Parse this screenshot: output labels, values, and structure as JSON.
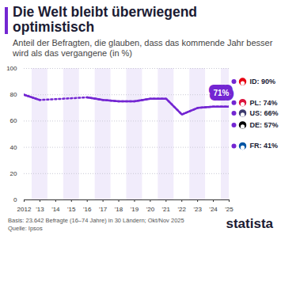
{
  "chart_data": {
    "type": "line",
    "title": "Die Welt bleibt überwiegend optimistisch",
    "subtitle": "Anteil der Befragten, die glauben, dass das kommende Jahr besser wird als das vergangene (in %)",
    "caption": [
      "Basis: 23.642 Befragte (16–74 Jahre) in 30 Ländern; Okt/Nov 2025",
      "Quelle: Ipsos"
    ],
    "source_logo": "statista",
    "x": [
      2012,
      2013,
      2014,
      2015,
      2016,
      2017,
      2018,
      2019,
      2020,
      2021,
      2022,
      2023,
      2024,
      2025
    ],
    "series": [
      {
        "name": "Welt",
        "color": "#7326d2",
        "values": [
          80,
          76,
          null,
          null,
          78,
          76,
          75,
          75,
          77,
          77,
          65,
          70,
          71,
          71
        ],
        "value_labels": [
          null,
          null,
          null,
          null,
          null,
          null,
          null,
          null,
          null,
          null,
          null,
          null,
          null,
          "71%"
        ]
      }
    ],
    "countries": {
      "categories": [
        "ID",
        "PL",
        "US",
        "DE",
        "FR"
      ],
      "values": [
        90,
        74,
        66,
        57,
        41
      ],
      "value_labels": [
        "ID: 90%",
        "PL: 74%",
        "US: 66%",
        "DE: 57%",
        "FR: 41%"
      ],
      "color": "#7326d2"
    },
    "xlim": [
      2012,
      2025
    ],
    "xticks": [
      {
        "value": 2012,
        "label": "2012"
      },
      {
        "value": 2013,
        "label": "'13"
      },
      {
        "value": 2014,
        "label": "'14"
      },
      {
        "value": 2015,
        "label": "'15"
      },
      {
        "value": 2016,
        "label": "'16"
      },
      {
        "value": 2017,
        "label": "'17"
      },
      {
        "value": 2018,
        "label": "'18"
      },
      {
        "value": 2019,
        "label": "'19"
      },
      {
        "value": 2020,
        "label": "'20"
      },
      {
        "value": 2021,
        "label": "'21"
      },
      {
        "value": 2022,
        "label": "'22"
      },
      {
        "value": 2023,
        "label": "'23"
      },
      {
        "value": 2024,
        "label": "'24"
      },
      {
        "value": 2025,
        "label": "'25"
      }
    ],
    "ylim": [
      0,
      100
    ],
    "yticks": [
      0,
      20,
      40,
      60,
      80,
      100
    ],
    "grid": true,
    "data_labels": true
  }
}
